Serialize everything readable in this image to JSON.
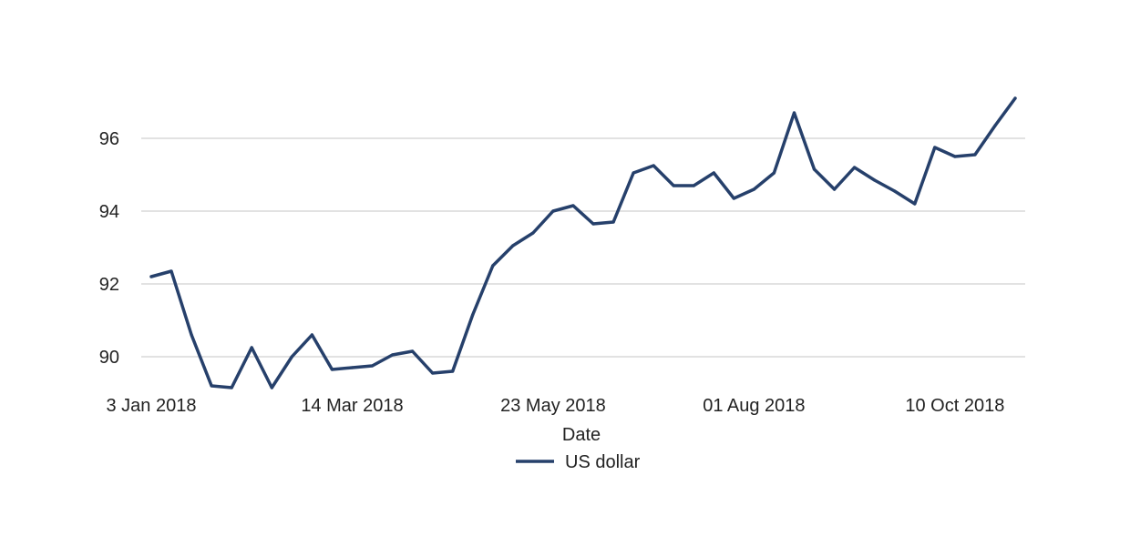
{
  "chart_data": {
    "type": "line",
    "xlabel": "Date",
    "ylabel": "",
    "ylim": [
      89.2,
      97.2
    ],
    "grid": "horizontal",
    "legend_position": "bottom-center",
    "y_ticks": [
      90,
      92,
      94,
      96
    ],
    "x_tick_labels": [
      "3 Jan 2018",
      "14 Mar 2018",
      "23 May 2018",
      "01 Aug 2018",
      "10 Oct 2018"
    ],
    "colors": {
      "series": "#26406b",
      "grid": "#d9d9d9",
      "text": "#222222"
    },
    "x": [
      "3 Jan 2018",
      "10 Jan 2018",
      "17 Jan 2018",
      "24 Jan 2018",
      "31 Jan 2018",
      "7 Feb 2018",
      "14 Feb 2018",
      "21 Feb 2018",
      "28 Feb 2018",
      "7 Mar 2018",
      "14 Mar 2018",
      "21 Mar 2018",
      "28 Mar 2018",
      "4 Apr 2018",
      "11 Apr 2018",
      "18 Apr 2018",
      "25 Apr 2018",
      "2 May 2018",
      "9 May 2018",
      "16 May 2018",
      "23 May 2018",
      "30 May 2018",
      "6 Jun 2018",
      "13 Jun 2018",
      "20 Jun 2018",
      "27 Jun 2018",
      "4 Jul 2018",
      "11 Jul 2018",
      "18 Jul 2018",
      "25 Jul 2018",
      "01 Aug 2018",
      "8 Aug 2018",
      "15 Aug 2018",
      "22 Aug 2018",
      "29 Aug 2018",
      "5 Sep 2018",
      "12 Sep 2018",
      "19 Sep 2018",
      "26 Sep 2018",
      "3 Oct 2018",
      "10 Oct 2018",
      "17 Oct 2018",
      "24 Oct 2018",
      "31 Oct 2018"
    ],
    "series": [
      {
        "name": "US dollar",
        "values": [
          92.2,
          92.35,
          90.6,
          89.2,
          89.15,
          90.25,
          89.15,
          90.0,
          90.6,
          89.65,
          89.7,
          89.75,
          90.05,
          90.15,
          89.55,
          89.6,
          91.15,
          92.5,
          93.05,
          93.4,
          94.0,
          94.15,
          93.65,
          93.7,
          95.05,
          95.25,
          94.7,
          94.7,
          95.05,
          94.35,
          94.6,
          95.05,
          96.7,
          95.15,
          94.6,
          95.2,
          94.85,
          94.55,
          94.2,
          95.75,
          95.5,
          95.55,
          96.35,
          97.1
        ]
      }
    ]
  }
}
